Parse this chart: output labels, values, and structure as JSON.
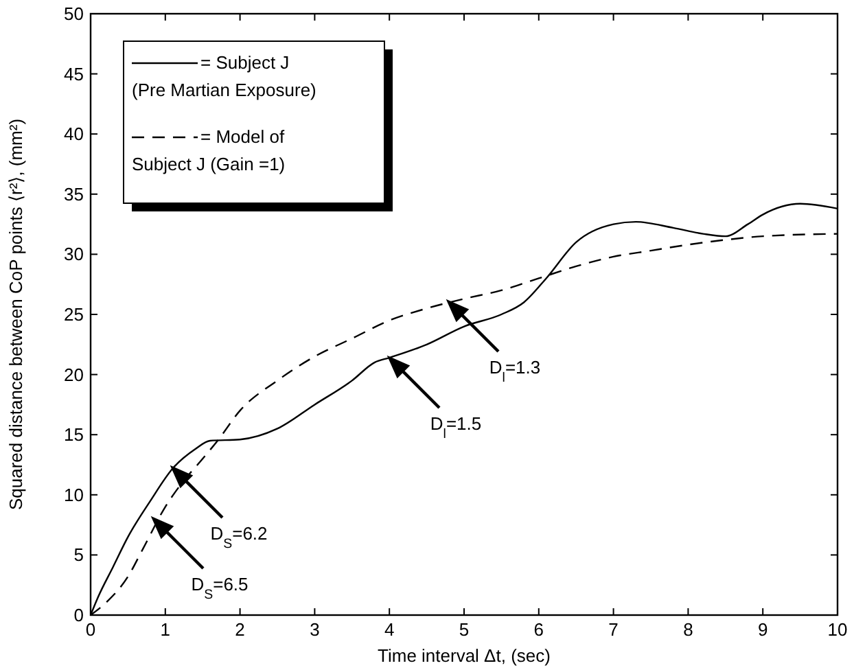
{
  "chart_data": {
    "type": "line",
    "xlabel": "Time interval  Δt, (sec)",
    "ylabel": "Squared distance between CoP points  ⟨r²⟩, (mm²)",
    "xlim": [
      0,
      10
    ],
    "ylim": [
      0,
      50
    ],
    "xticks": [
      0,
      1,
      2,
      3,
      4,
      5,
      6,
      7,
      8,
      9,
      10
    ],
    "yticks": [
      0,
      5,
      10,
      15,
      20,
      25,
      30,
      35,
      40,
      45,
      50
    ],
    "grid": false,
    "legend": "top left",
    "marker": "none",
    "series": [
      {
        "name": "= Subject J (Pre Martian Exposure)",
        "color": "#000000",
        "line_style": "solid",
        "x": [
          0,
          0.1,
          0.3,
          0.5,
          0.8,
          1.1,
          1.4,
          1.6,
          2,
          2.5,
          3,
          3.5,
          3.8,
          4,
          4.5,
          5,
          5.5,
          5.8,
          6.1,
          6.5,
          7,
          7.3,
          7.8,
          8.2,
          8.5,
          8.8,
          9,
          9.5,
          10
        ],
        "values": [
          0,
          1.5,
          4,
          6.5,
          9.5,
          12.2,
          13.8,
          14.5,
          14.6,
          15.5,
          17.5,
          19.5,
          21,
          21.4,
          22.5,
          24,
          25,
          26,
          28,
          31,
          32.5,
          32.7,
          32.2,
          31.7,
          31.5,
          32.5,
          33.3,
          34.2,
          33.8
        ]
      },
      {
        "name": "= Model of Subject J (Gain =1)",
        "color": "#000000",
        "line_style": "dashed",
        "x": [
          0,
          0.2,
          0.5,
          0.7,
          1,
          1.2,
          1.5,
          1.7,
          2,
          2.5,
          3,
          3.5,
          4,
          4.5,
          5,
          5.5,
          6,
          6.5,
          7,
          7.5,
          8,
          8.5,
          9,
          10
        ],
        "values": [
          0,
          1,
          3.2,
          5.5,
          9,
          10.8,
          13,
          14.5,
          17,
          19.5,
          21.5,
          23,
          24.5,
          25.5,
          26.3,
          27,
          28,
          29,
          29.8,
          30.3,
          30.8,
          31.2,
          31.5,
          31.7
        ]
      }
    ],
    "annotations": [
      "D$_{S}$=6.2",
      "D$_{S}$=6.5",
      "D$_{l}$=1.5",
      "D$_{l}$=1.3"
    ]
  }
}
